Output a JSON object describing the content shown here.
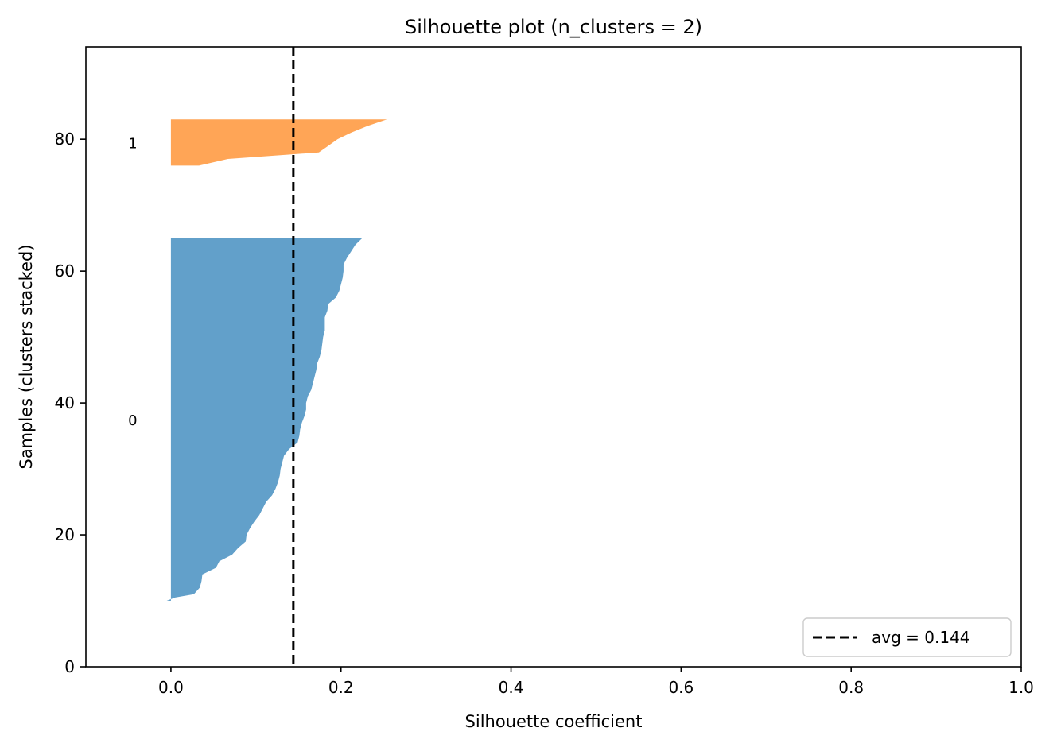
{
  "chart_data": {
    "type": "area",
    "title": "Silhouette plot (n_clusters = 2)",
    "xlabel": "Silhouette coefficient",
    "ylabel": "Samples (clusters stacked)",
    "xlim": [
      -0.1,
      1.0
    ],
    "ylim": [
      0,
      94
    ],
    "xticks": [
      0.0,
      0.2,
      0.4,
      0.6,
      0.8,
      1.0
    ],
    "xtick_labels": [
      "0.0",
      "0.2",
      "0.4",
      "0.6",
      "0.8",
      "1.0"
    ],
    "yticks": [
      0,
      20,
      40,
      60,
      80
    ],
    "ytick_labels": [
      "0",
      "20",
      "40",
      "60",
      "80"
    ],
    "grid": false,
    "clusters": [
      {
        "label": "0",
        "color": "#1f77b4",
        "opacity": 0.7,
        "label_y": 37.5,
        "y_start": 10,
        "y_end": 65,
        "points": [
          [
            10,
            -0.005
          ],
          [
            10.5,
            0.005
          ],
          [
            11,
            0.027
          ],
          [
            12,
            0.034
          ],
          [
            13,
            0.036
          ],
          [
            14,
            0.037
          ],
          [
            15,
            0.053
          ],
          [
            16,
            0.057
          ],
          [
            17,
            0.072
          ],
          [
            18,
            0.079
          ],
          [
            19,
            0.088
          ],
          [
            20,
            0.089
          ],
          [
            21,
            0.093
          ],
          [
            22,
            0.098
          ],
          [
            23,
            0.104
          ],
          [
            24,
            0.108
          ],
          [
            25,
            0.112
          ],
          [
            26,
            0.119
          ],
          [
            27,
            0.123
          ],
          [
            28,
            0.126
          ],
          [
            29,
            0.128
          ],
          [
            30,
            0.129
          ],
          [
            31,
            0.131
          ],
          [
            32,
            0.133
          ],
          [
            33,
            0.139
          ],
          [
            34,
            0.149
          ],
          [
            35,
            0.151
          ],
          [
            36,
            0.152
          ],
          [
            37,
            0.154
          ],
          [
            38,
            0.157
          ],
          [
            39,
            0.159
          ],
          [
            40,
            0.159
          ],
          [
            41,
            0.161
          ],
          [
            42,
            0.165
          ],
          [
            43,
            0.167
          ],
          [
            44,
            0.169
          ],
          [
            45,
            0.171
          ],
          [
            46,
            0.172
          ],
          [
            47,
            0.175
          ],
          [
            48,
            0.177
          ],
          [
            49,
            0.178
          ],
          [
            50,
            0.179
          ],
          [
            51,
            0.181
          ],
          [
            52,
            0.181
          ],
          [
            53,
            0.181
          ],
          [
            54,
            0.184
          ],
          [
            55,
            0.185
          ],
          [
            56,
            0.194
          ],
          [
            57,
            0.198
          ],
          [
            58,
            0.2
          ],
          [
            59,
            0.202
          ],
          [
            60,
            0.203
          ],
          [
            61,
            0.203
          ],
          [
            62,
            0.207
          ],
          [
            63,
            0.212
          ],
          [
            64,
            0.217
          ],
          [
            65,
            0.225
          ]
        ]
      },
      {
        "label": "1",
        "color": "#ff7f0e",
        "opacity": 0.7,
        "label_y": 79.5,
        "y_start": 76,
        "y_end": 83,
        "points": [
          [
            76,
            0.033
          ],
          [
            77,
            0.067
          ],
          [
            78,
            0.174
          ],
          [
            79,
            0.185
          ],
          [
            80,
            0.196
          ],
          [
            81,
            0.212
          ],
          [
            82,
            0.231
          ],
          [
            83,
            0.254
          ]
        ]
      }
    ],
    "avg_line": {
      "x": 0.144,
      "color": "#000000",
      "style": "dashed"
    },
    "legend": {
      "placement": "lower-right",
      "entries": [
        {
          "label": "avg = 0.144",
          "style": "dashed-line",
          "color": "#000000"
        }
      ]
    }
  }
}
